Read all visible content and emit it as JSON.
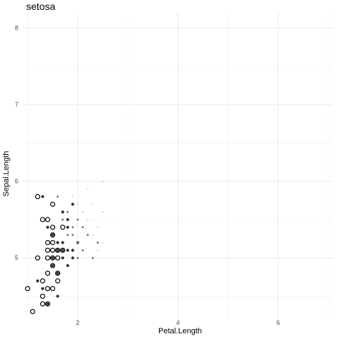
{
  "chart_data": {
    "type": "scatter",
    "title": "setosa",
    "xlabel": "Petal.Length",
    "ylabel": "Sepal.Length",
    "xlim": [
      0.9,
      7.1
    ],
    "ylim": [
      4.2,
      8.2
    ],
    "xticks": [
      2,
      4,
      6
    ],
    "xtick_labels": [
      "2",
      "4",
      "6"
    ],
    "yticks": [
      5,
      6,
      7,
      8
    ],
    "ytick_labels": [
      "5",
      "6",
      "7",
      "8"
    ],
    "grid": true,
    "legend": "none",
    "series": [
      {
        "marker": "open-circle",
        "color": "#000000",
        "points": [
          [
            1.0,
            4.6
          ],
          [
            1.1,
            4.3
          ],
          [
            1.2,
            5.8
          ],
          [
            1.2,
            5.0
          ],
          [
            1.3,
            4.4
          ],
          [
            1.3,
            4.5
          ],
          [
            1.3,
            4.7
          ],
          [
            1.3,
            5.5
          ],
          [
            1.4,
            4.4
          ],
          [
            1.4,
            4.6
          ],
          [
            1.4,
            4.8
          ],
          [
            1.4,
            5.0
          ],
          [
            1.4,
            5.1
          ],
          [
            1.4,
            5.2
          ],
          [
            1.4,
            5.5
          ],
          [
            1.5,
            4.6
          ],
          [
            1.5,
            4.9
          ],
          [
            1.5,
            5.0
          ],
          [
            1.5,
            5.1
          ],
          [
            1.5,
            5.2
          ],
          [
            1.5,
            5.3
          ],
          [
            1.5,
            5.4
          ],
          [
            1.5,
            5.7
          ],
          [
            1.6,
            4.7
          ],
          [
            1.6,
            4.8
          ],
          [
            1.6,
            5.0
          ],
          [
            1.6,
            5.1
          ],
          [
            1.7,
            5.4
          ],
          [
            1.7,
            5.1
          ]
        ]
      },
      {
        "marker": "dot",
        "color": "#333333",
        "points": [
          [
            1.2,
            4.7
          ],
          [
            1.3,
            4.6
          ],
          [
            1.3,
            5.8
          ],
          [
            1.4,
            5.4
          ],
          [
            1.4,
            4.4
          ],
          [
            1.5,
            5.3
          ],
          [
            1.5,
            5.0
          ],
          [
            1.5,
            4.9
          ],
          [
            1.6,
            5.2
          ],
          [
            1.6,
            5.1
          ],
          [
            1.6,
            4.5
          ],
          [
            1.6,
            4.8
          ],
          [
            1.7,
            5.6
          ],
          [
            1.7,
            5.2
          ],
          [
            1.7,
            5.0
          ],
          [
            1.7,
            5.1
          ],
          [
            1.8,
            5.4
          ],
          [
            1.8,
            5.5
          ],
          [
            1.8,
            5.1
          ],
          [
            1.8,
            4.9
          ],
          [
            1.9,
            5.1
          ],
          [
            1.9,
            5.7
          ],
          [
            1.9,
            5.0
          ],
          [
            2.0,
            5.2
          ]
        ]
      },
      {
        "marker": "small-dot",
        "color": "#7a7a7a",
        "points": [
          [
            1.6,
            5.8
          ],
          [
            1.7,
            5.5
          ],
          [
            1.8,
            5.3
          ],
          [
            1.8,
            5.6
          ],
          [
            1.9,
            5.4
          ],
          [
            1.9,
            5.3
          ],
          [
            2.0,
            5.0
          ],
          [
            2.0,
            5.5
          ],
          [
            2.0,
            5.2
          ],
          [
            2.1,
            5.1
          ],
          [
            2.1,
            5.4
          ],
          [
            2.2,
            5.3
          ],
          [
            2.3,
            5.0
          ],
          [
            2.4,
            5.2
          ]
        ]
      },
      {
        "marker": "tiny-dot",
        "color": "#bdbdbd",
        "points": [
          [
            1.9,
            5.8
          ],
          [
            2.0,
            5.7
          ],
          [
            2.1,
            5.6
          ],
          [
            2.2,
            5.5
          ],
          [
            2.2,
            5.9
          ],
          [
            2.3,
            5.3
          ],
          [
            2.3,
            5.7
          ],
          [
            2.4,
            5.4
          ],
          [
            2.4,
            5.1
          ],
          [
            2.5,
            5.2
          ],
          [
            2.5,
            5.6
          ],
          [
            2.5,
            6.0
          ]
        ]
      }
    ]
  }
}
